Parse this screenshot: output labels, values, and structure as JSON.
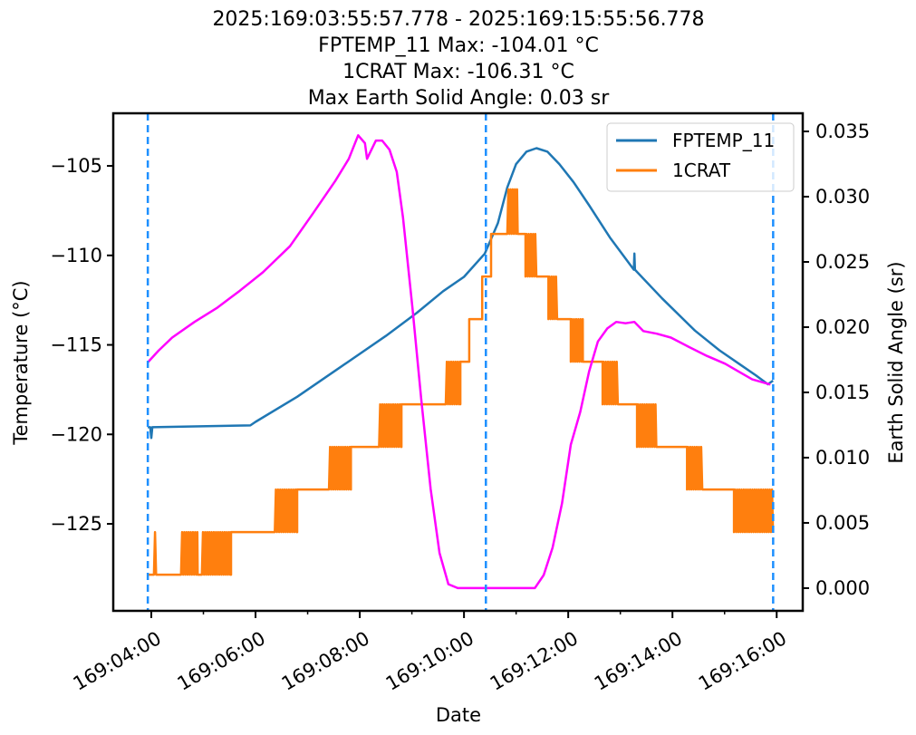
{
  "chart_data": {
    "type": "line",
    "title_lines": [
      "2025:169:03:55:57.778 - 2025:169:15:55:56.778",
      "FPTEMP_11 Max: -104.01 °C",
      "1CRAT Max: -106.31 °C",
      "Max Earth Solid Angle: 0.03 sr"
    ],
    "xlabel": "Date",
    "ylabel": "Temperature (°C)",
    "y2label": "Earth Solid Angle (sr)",
    "x_units": "hours of day 169",
    "xlim": [
      3.27,
      16.5
    ],
    "ylim": [
      -129.86,
      -102.06
    ],
    "y2lim": [
      -0.00174,
      0.03639
    ],
    "xticks": [
      4,
      6,
      8,
      10,
      12,
      14,
      16
    ],
    "xtick_labels": [
      "169:04:00",
      "169:06:00",
      "169:08:00",
      "169:10:00",
      "169:12:00",
      "169:14:00",
      "169:16:00"
    ],
    "xminor": [
      5,
      7,
      9,
      11,
      13,
      15
    ],
    "yticks": [
      -105,
      -110,
      -115,
      -120,
      -125
    ],
    "ytick_labels": [
      "−105",
      "−110",
      "−115",
      "−120",
      "−125"
    ],
    "y2ticks": [
      0,
      0.005,
      0.01,
      0.015,
      0.02,
      0.025,
      0.03,
      0.035
    ],
    "y2tick_labels": [
      "0.000",
      "0.005",
      "0.010",
      "0.015",
      "0.020",
      "0.025",
      "0.030",
      "0.035"
    ],
    "vlines": [
      3.933,
      10.42,
      15.932
    ],
    "vline_color": "#1e90ff",
    "legend": {
      "placement": "top-right",
      "entries": [
        "FPTEMP_11",
        "1CRAT"
      ]
    },
    "series": [
      {
        "name": "FPTEMP_11",
        "axis": "left",
        "color": "#1f77b4",
        "kind": "line",
        "points": [
          [
            3.933,
            -119.6
          ],
          [
            3.98,
            -119.6
          ],
          [
            4.0,
            -120.2
          ],
          [
            4.02,
            -119.6
          ],
          [
            5.9,
            -119.5
          ],
          [
            6.0,
            -119.3
          ],
          [
            6.8,
            -117.9
          ],
          [
            7.6,
            -116.3
          ],
          [
            8.5,
            -114.5
          ],
          [
            9.1,
            -113.2
          ],
          [
            9.6,
            -112.0
          ],
          [
            10.0,
            -111.2
          ],
          [
            10.4,
            -109.9
          ],
          [
            10.65,
            -108.2
          ],
          [
            10.83,
            -106.2
          ],
          [
            11.0,
            -104.9
          ],
          [
            11.2,
            -104.2
          ],
          [
            11.39,
            -104.01
          ],
          [
            11.6,
            -104.2
          ],
          [
            11.83,
            -104.9
          ],
          [
            12.1,
            -105.9
          ],
          [
            12.4,
            -107.2
          ],
          [
            12.8,
            -109.0
          ],
          [
            13.26,
            -110.8
          ],
          [
            13.27,
            -109.9
          ],
          [
            13.28,
            -110.8
          ],
          [
            13.8,
            -112.4
          ],
          [
            14.43,
            -114.2
          ],
          [
            14.9,
            -115.3
          ],
          [
            15.3,
            -116.1
          ],
          [
            15.6,
            -116.7
          ],
          [
            15.83,
            -117.2
          ],
          [
            15.93,
            -117.0
          ]
        ]
      },
      {
        "name": "1CRAT",
        "axis": "left",
        "color": "#ff7f0e",
        "kind": "steps",
        "levels": [
          -127.84,
          -125.46,
          -123.08,
          -120.7,
          -118.32,
          -115.94,
          -113.56,
          -111.18,
          -108.8,
          -106.31
        ],
        "segments": [
          [
            3.933,
            4.05,
            0,
            0
          ],
          [
            4.05,
            4.1,
            0,
            1
          ],
          [
            4.1,
            4.57,
            0,
            0
          ],
          [
            4.57,
            4.89,
            0,
            1
          ],
          [
            4.89,
            4.97,
            0,
            0
          ],
          [
            4.97,
            5.53,
            0,
            1
          ],
          [
            5.53,
            6.37,
            1,
            1
          ],
          [
            6.37,
            6.8,
            1,
            2
          ],
          [
            6.8,
            7.41,
            2,
            2
          ],
          [
            7.41,
            7.83,
            2,
            3
          ],
          [
            7.83,
            8.37,
            3,
            3
          ],
          [
            8.37,
            8.8,
            3,
            4
          ],
          [
            8.8,
            9.65,
            4,
            4
          ],
          [
            9.65,
            9.93,
            4,
            5
          ],
          [
            9.93,
            10.1,
            5,
            5
          ],
          [
            10.1,
            10.35,
            6,
            6
          ],
          [
            10.35,
            10.52,
            7,
            7
          ],
          [
            10.52,
            10.83,
            8,
            8
          ],
          [
            10.83,
            11.03,
            8,
            9
          ],
          [
            11.03,
            11.18,
            8,
            8
          ],
          [
            11.18,
            11.39,
            7,
            8
          ],
          [
            11.39,
            11.62,
            7,
            7
          ],
          [
            11.62,
            11.79,
            6,
            7
          ],
          [
            11.79,
            12.05,
            6,
            6
          ],
          [
            12.05,
            12.28,
            5,
            6
          ],
          [
            12.28,
            12.66,
            5,
            5
          ],
          [
            12.66,
            12.96,
            4,
            5
          ],
          [
            12.96,
            13.32,
            4,
            4
          ],
          [
            13.32,
            13.69,
            3,
            4
          ],
          [
            13.69,
            14.28,
            3,
            3
          ],
          [
            14.28,
            14.59,
            2,
            3
          ],
          [
            14.59,
            15.18,
            2,
            2
          ],
          [
            15.18,
            15.93,
            1,
            2
          ]
        ]
      },
      {
        "name": "Earth Solid Angle",
        "axis": "right",
        "color": "#ff00ff",
        "kind": "line",
        "points": [
          [
            3.933,
            0.0173
          ],
          [
            4.14,
            0.0182
          ],
          [
            4.4,
            0.0192
          ],
          [
            4.83,
            0.0204
          ],
          [
            5.27,
            0.0215
          ],
          [
            5.7,
            0.0228
          ],
          [
            6.14,
            0.0242
          ],
          [
            6.66,
            0.0262
          ],
          [
            7.1,
            0.0287
          ],
          [
            7.53,
            0.0312
          ],
          [
            7.79,
            0.0329
          ],
          [
            7.97,
            0.0347
          ],
          [
            8.1,
            0.0341
          ],
          [
            8.14,
            0.0329
          ],
          [
            8.31,
            0.0343
          ],
          [
            8.43,
            0.0343
          ],
          [
            8.57,
            0.0336
          ],
          [
            8.71,
            0.0319
          ],
          [
            8.83,
            0.0284
          ],
          [
            9.01,
            0.0215
          ],
          [
            9.18,
            0.0145
          ],
          [
            9.36,
            0.0076
          ],
          [
            9.53,
            0.0027
          ],
          [
            9.7,
            0.0003
          ],
          [
            9.88,
            0.0
          ],
          [
            11.36,
            0.0
          ],
          [
            11.53,
            0.001
          ],
          [
            11.7,
            0.0031
          ],
          [
            11.88,
            0.0065
          ],
          [
            12.05,
            0.011
          ],
          [
            12.23,
            0.0135
          ],
          [
            12.4,
            0.0166
          ],
          [
            12.57,
            0.0189
          ],
          [
            12.75,
            0.0199
          ],
          [
            12.92,
            0.0204
          ],
          [
            13.1,
            0.0203
          ],
          [
            13.27,
            0.0204
          ],
          [
            13.44,
            0.0197
          ],
          [
            13.7,
            0.0195
          ],
          [
            13.97,
            0.0192
          ],
          [
            14.31,
            0.0185
          ],
          [
            14.66,
            0.0178
          ],
          [
            15.01,
            0.0172
          ],
          [
            15.27,
            0.0166
          ],
          [
            15.53,
            0.016
          ],
          [
            15.88,
            0.0156
          ]
        ]
      }
    ]
  }
}
